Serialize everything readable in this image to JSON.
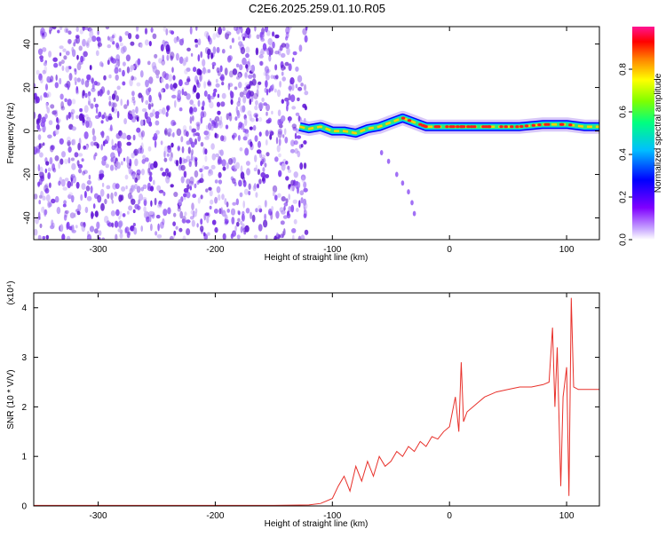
{
  "title": "C2E6.2025.259.01.10.R05",
  "colors": {
    "snr_line": "#e8302a",
    "scatter": "#7a2ee6",
    "axis": "#000000"
  },
  "chart_data": [
    {
      "type": "heatmap",
      "title": "C2E6.2025.259.01.10.R05",
      "xlabel": "Height of straight line (km)",
      "ylabel": "Frequency (Hz)",
      "xlim": [
        -355,
        128
      ],
      "ylim": [
        -50,
        48
      ],
      "xticks": [
        -300,
        -200,
        -100,
        0,
        100
      ],
      "yticks": [
        -40,
        -20,
        0,
        20,
        40
      ],
      "colorbar": {
        "label": "Normalized spectral amplitude",
        "range": [
          0,
          1
        ],
        "ticks": [
          "0.0",
          "0.2",
          "0.4",
          "0.6",
          "0.8"
        ],
        "colormap": [
          "#ffffff",
          "#7f00ff",
          "#0000ff",
          "#00bfff",
          "#00ff7f",
          "#7fff00",
          "#ffff00",
          "#ff7f00",
          "#ff0000",
          "#ff1493"
        ]
      },
      "noise_region": {
        "x": [
          -355,
          -122
        ],
        "freq": [
          -50,
          48
        ]
      },
      "main_trace": [
        [
          -128,
          2
        ],
        [
          -120,
          1
        ],
        [
          -110,
          2
        ],
        [
          -100,
          0
        ],
        [
          -90,
          0
        ],
        [
          -80,
          -1
        ],
        [
          -70,
          1
        ],
        [
          -60,
          2
        ],
        [
          -50,
          4
        ],
        [
          -40,
          6
        ],
        [
          -30,
          4
        ],
        [
          -20,
          2
        ],
        [
          -10,
          2
        ],
        [
          0,
          2
        ],
        [
          10,
          2
        ],
        [
          20,
          2
        ],
        [
          40,
          2
        ],
        [
          60,
          2
        ],
        [
          80,
          3
        ],
        [
          100,
          3
        ],
        [
          115,
          2
        ],
        [
          128,
          2
        ]
      ],
      "secondary_trace": [
        [
          -58,
          -10
        ],
        [
          -52,
          -14
        ],
        [
          -45,
          -20
        ],
        [
          -40,
          -24
        ],
        [
          -35,
          -28
        ],
        [
          -32,
          -33
        ],
        [
          -30,
          -38
        ]
      ],
      "grid": false
    },
    {
      "type": "line",
      "xlabel": "Height of straight line (km)",
      "ylabel": "SNR (10 * V/V)",
      "scale_note": "(x10⁴)",
      "xlim": [
        -355,
        128
      ],
      "ylim": [
        0,
        4.3
      ],
      "xticks": [
        -300,
        -200,
        -100,
        0,
        100
      ],
      "yticks": [
        0,
        1,
        2,
        3,
        4
      ],
      "series": [
        {
          "x": [
            -355,
            -300,
            -250,
            -200,
            -150,
            -120,
            -110,
            -100,
            -95,
            -90,
            -85,
            -80,
            -75,
            -70,
            -65,
            -60,
            -55,
            -50,
            -45,
            -40,
            -35,
            -30,
            -25,
            -20,
            -15,
            -10,
            -5,
            0,
            5,
            8,
            10,
            12,
            15,
            20,
            25,
            30,
            35,
            40,
            50,
            60,
            70,
            80,
            85,
            88,
            90,
            92,
            95,
            97,
            100,
            102,
            104,
            106,
            110,
            120,
            128
          ],
          "y": [
            0.01,
            0.01,
            0.01,
            0.01,
            0.01,
            0.02,
            0.05,
            0.15,
            0.4,
            0.6,
            0.3,
            0.8,
            0.5,
            0.9,
            0.6,
            1.0,
            0.8,
            0.9,
            1.1,
            1.0,
            1.2,
            1.1,
            1.3,
            1.2,
            1.4,
            1.35,
            1.5,
            1.6,
            2.2,
            1.5,
            2.9,
            1.7,
            1.9,
            2.0,
            2.1,
            2.2,
            2.25,
            2.3,
            2.35,
            2.4,
            2.4,
            2.45,
            2.5,
            3.6,
            2.0,
            3.2,
            0.4,
            2.2,
            2.8,
            0.2,
            4.2,
            2.4,
            2.35,
            2.35,
            2.35
          ]
        }
      ],
      "grid": false
    }
  ]
}
